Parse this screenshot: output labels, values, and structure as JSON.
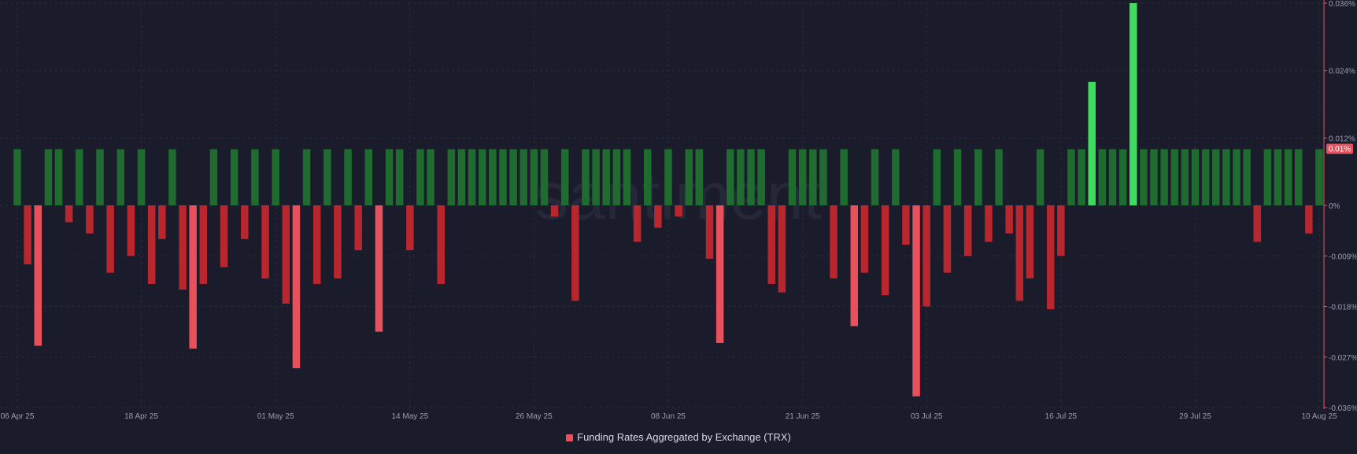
{
  "watermark": "santiment",
  "legend": {
    "label": "Funding Rates Aggregated by Exchange (TRX)",
    "color": "#e8505b"
  },
  "last_value_badge": "0.01%",
  "colors": {
    "background": "#1a1c2b",
    "positive": "#1f6b30",
    "positive_bright": "#3ddc5c",
    "negative": "#b8262e",
    "negative_bright": "#e8505b",
    "axis": "#e8505b",
    "grid": "#2a2d3e",
    "tick_text": "#9a9cb0"
  },
  "chart_data": {
    "type": "bar",
    "title": "",
    "xlabel": "",
    "ylabel": "",
    "x_start": "2025-04-06",
    "x_end": "2025-08-10",
    "x_ticks": [
      "06 Apr 25",
      "18 Apr 25",
      "01 May 25",
      "14 May 25",
      "26 May 25",
      "08 Jun 25",
      "21 Jun 25",
      "03 Jul 25",
      "16 Jul 25",
      "29 Jul 25",
      "10 Aug 25"
    ],
    "y_ticks": [
      "0.036%",
      "0.024%",
      "0.012%",
      "0%",
      "-0.009%",
      "-0.018%",
      "-0.027%",
      "-0.036%"
    ],
    "y_tick_values": [
      0.036,
      0.024,
      0.012,
      0,
      -0.009,
      -0.018,
      -0.027,
      -0.036
    ],
    "ylim": [
      -0.036,
      0.036
    ],
    "grid": true,
    "legend_position": "bottom-center",
    "last_value": 0.01,
    "series": [
      {
        "name": "Funding Rates Aggregated by Exchange (TRX)",
        "unit": "%",
        "points": [
          {
            "x": "2025-04-06",
            "y": 0.01
          },
          {
            "x": "2025-04-07",
            "y": -0.0105
          },
          {
            "x": "2025-04-08",
            "y": -0.025
          },
          {
            "x": "2025-04-09",
            "y": 0.01
          },
          {
            "x": "2025-04-10",
            "y": 0.01
          },
          {
            "x": "2025-04-11",
            "y": -0.003
          },
          {
            "x": "2025-04-12",
            "y": 0.01
          },
          {
            "x": "2025-04-13",
            "y": -0.005
          },
          {
            "x": "2025-04-14",
            "y": 0.01
          },
          {
            "x": "2025-04-15",
            "y": -0.012
          },
          {
            "x": "2025-04-16",
            "y": 0.01
          },
          {
            "x": "2025-04-17",
            "y": -0.009
          },
          {
            "x": "2025-04-18",
            "y": 0.01
          },
          {
            "x": "2025-04-19",
            "y": -0.014
          },
          {
            "x": "2025-04-20",
            "y": -0.006
          },
          {
            "x": "2025-04-21",
            "y": 0.01
          },
          {
            "x": "2025-04-22",
            "y": -0.015
          },
          {
            "x": "2025-04-23",
            "y": -0.0255
          },
          {
            "x": "2025-04-24",
            "y": -0.014
          },
          {
            "x": "2025-04-25",
            "y": 0.01
          },
          {
            "x": "2025-04-26",
            "y": -0.011
          },
          {
            "x": "2025-04-27",
            "y": 0.01
          },
          {
            "x": "2025-04-28",
            "y": -0.006
          },
          {
            "x": "2025-04-29",
            "y": 0.01
          },
          {
            "x": "2025-04-30",
            "y": -0.013
          },
          {
            "x": "2025-05-01",
            "y": 0.01
          },
          {
            "x": "2025-05-02",
            "y": -0.0175
          },
          {
            "x": "2025-05-03",
            "y": -0.029
          },
          {
            "x": "2025-05-04",
            "y": 0.01
          },
          {
            "x": "2025-05-05",
            "y": -0.014
          },
          {
            "x": "2025-05-06",
            "y": 0.01
          },
          {
            "x": "2025-05-07",
            "y": -0.013
          },
          {
            "x": "2025-05-08",
            "y": 0.01
          },
          {
            "x": "2025-05-09",
            "y": -0.008
          },
          {
            "x": "2025-05-10",
            "y": 0.01
          },
          {
            "x": "2025-05-11",
            "y": -0.0225
          },
          {
            "x": "2025-05-12",
            "y": 0.01
          },
          {
            "x": "2025-05-13",
            "y": 0.01
          },
          {
            "x": "2025-05-14",
            "y": -0.008
          },
          {
            "x": "2025-05-15",
            "y": 0.01
          },
          {
            "x": "2025-05-16",
            "y": 0.01
          },
          {
            "x": "2025-05-17",
            "y": -0.014
          },
          {
            "x": "2025-05-18",
            "y": 0.01
          },
          {
            "x": "2025-05-19",
            "y": 0.01
          },
          {
            "x": "2025-05-20",
            "y": 0.01
          },
          {
            "x": "2025-05-21",
            "y": 0.01
          },
          {
            "x": "2025-05-22",
            "y": 0.01
          },
          {
            "x": "2025-05-23",
            "y": 0.01
          },
          {
            "x": "2025-05-24",
            "y": 0.01
          },
          {
            "x": "2025-05-25",
            "y": 0.01
          },
          {
            "x": "2025-05-26",
            "y": 0.01
          },
          {
            "x": "2025-05-27",
            "y": 0.01
          },
          {
            "x": "2025-05-28",
            "y": -0.002
          },
          {
            "x": "2025-05-29",
            "y": 0.01
          },
          {
            "x": "2025-05-30",
            "y": -0.017
          },
          {
            "x": "2025-05-31",
            "y": 0.01
          },
          {
            "x": "2025-06-01",
            "y": 0.01
          },
          {
            "x": "2025-06-02",
            "y": 0.01
          },
          {
            "x": "2025-06-03",
            "y": 0.01
          },
          {
            "x": "2025-06-04",
            "y": 0.01
          },
          {
            "x": "2025-06-05",
            "y": -0.0065
          },
          {
            "x": "2025-06-06",
            "y": 0.01
          },
          {
            "x": "2025-06-07",
            "y": -0.004
          },
          {
            "x": "2025-06-08",
            "y": 0.01
          },
          {
            "x": "2025-06-09",
            "y": -0.002
          },
          {
            "x": "2025-06-10",
            "y": 0.01
          },
          {
            "x": "2025-06-11",
            "y": 0.01
          },
          {
            "x": "2025-06-12",
            "y": -0.0095
          },
          {
            "x": "2025-06-13",
            "y": -0.0245
          },
          {
            "x": "2025-06-14",
            "y": 0.01
          },
          {
            "x": "2025-06-15",
            "y": 0.01
          },
          {
            "x": "2025-06-16",
            "y": 0.01
          },
          {
            "x": "2025-06-17",
            "y": 0.01
          },
          {
            "x": "2025-06-18",
            "y": -0.014
          },
          {
            "x": "2025-06-19",
            "y": -0.0155
          },
          {
            "x": "2025-06-20",
            "y": 0.01
          },
          {
            "x": "2025-06-21",
            "y": 0.01
          },
          {
            "x": "2025-06-22",
            "y": 0.01
          },
          {
            "x": "2025-06-23",
            "y": 0.01
          },
          {
            "x": "2025-06-24",
            "y": -0.013
          },
          {
            "x": "2025-06-25",
            "y": 0.01
          },
          {
            "x": "2025-06-26",
            "y": -0.0215
          },
          {
            "x": "2025-06-27",
            "y": -0.012
          },
          {
            "x": "2025-06-28",
            "y": 0.01
          },
          {
            "x": "2025-06-29",
            "y": -0.016
          },
          {
            "x": "2025-06-30",
            "y": 0.01
          },
          {
            "x": "2025-07-01",
            "y": -0.007
          },
          {
            "x": "2025-07-02",
            "y": -0.034
          },
          {
            "x": "2025-07-03",
            "y": -0.018
          },
          {
            "x": "2025-07-04",
            "y": 0.01
          },
          {
            "x": "2025-07-05",
            "y": -0.012
          },
          {
            "x": "2025-07-06",
            "y": 0.01
          },
          {
            "x": "2025-07-07",
            "y": -0.009
          },
          {
            "x": "2025-07-08",
            "y": 0.01
          },
          {
            "x": "2025-07-09",
            "y": -0.0065
          },
          {
            "x": "2025-07-10",
            "y": 0.01
          },
          {
            "x": "2025-07-11",
            "y": -0.005
          },
          {
            "x": "2025-07-12",
            "y": -0.017
          },
          {
            "x": "2025-07-13",
            "y": -0.013
          },
          {
            "x": "2025-07-14",
            "y": 0.01
          },
          {
            "x": "2025-07-15",
            "y": -0.0185
          },
          {
            "x": "2025-07-16",
            "y": -0.009
          },
          {
            "x": "2025-07-17",
            "y": 0.01
          },
          {
            "x": "2025-07-18",
            "y": 0.01
          },
          {
            "x": "2025-07-19",
            "y": 0.022
          },
          {
            "x": "2025-07-20",
            "y": 0.01
          },
          {
            "x": "2025-07-21",
            "y": 0.01
          },
          {
            "x": "2025-07-22",
            "y": 0.01
          },
          {
            "x": "2025-07-23",
            "y": 0.036
          },
          {
            "x": "2025-07-24",
            "y": 0.01
          },
          {
            "x": "2025-07-25",
            "y": 0.01
          },
          {
            "x": "2025-07-26",
            "y": 0.01
          },
          {
            "x": "2025-07-27",
            "y": 0.01
          },
          {
            "x": "2025-07-28",
            "y": 0.01
          },
          {
            "x": "2025-07-29",
            "y": 0.01
          },
          {
            "x": "2025-07-30",
            "y": 0.01
          },
          {
            "x": "2025-07-31",
            "y": 0.01
          },
          {
            "x": "2025-08-01",
            "y": 0.01
          },
          {
            "x": "2025-08-02",
            "y": 0.01
          },
          {
            "x": "2025-08-03",
            "y": 0.01
          },
          {
            "x": "2025-08-04",
            "y": -0.0065
          },
          {
            "x": "2025-08-05",
            "y": 0.01
          },
          {
            "x": "2025-08-06",
            "y": 0.01
          },
          {
            "x": "2025-08-07",
            "y": 0.01
          },
          {
            "x": "2025-08-08",
            "y": 0.01
          },
          {
            "x": "2025-08-09",
            "y": -0.005
          },
          {
            "x": "2025-08-10",
            "y": 0.01
          }
        ]
      }
    ]
  }
}
